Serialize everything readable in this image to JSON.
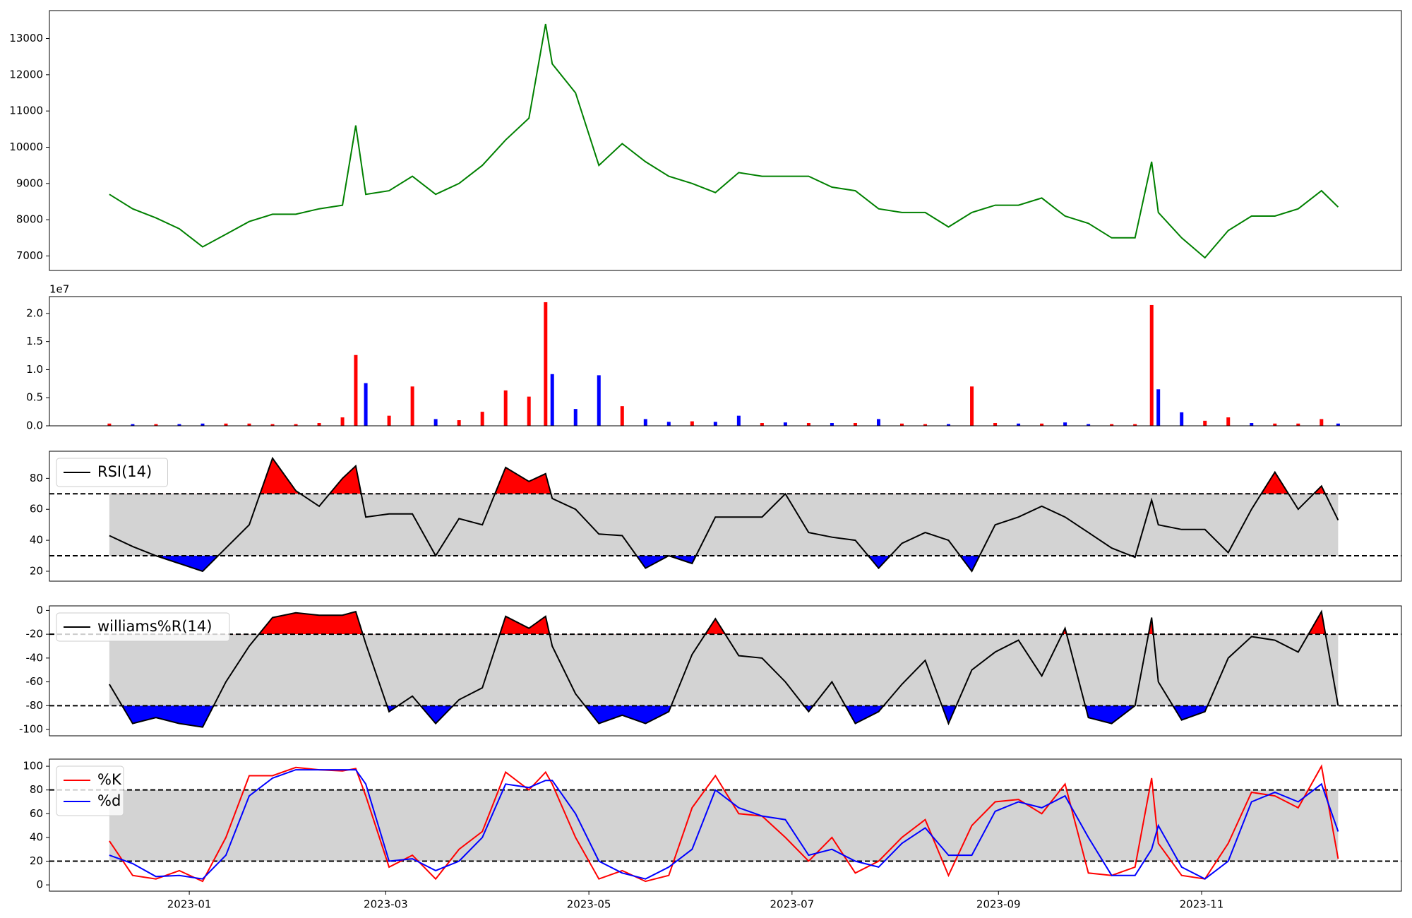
{
  "chart_data": [
    {
      "type": "line",
      "x": [
        "2022-12-08",
        "2022-12-15",
        "2022-12-22",
        "2022-12-29",
        "2023-01-05",
        "2023-01-12",
        "2023-01-19",
        "2023-01-26",
        "2023-02-02",
        "2023-02-09",
        "2023-02-16",
        "2023-02-20",
        "2023-02-23",
        "2023-03-02",
        "2023-03-09",
        "2023-03-16",
        "2023-03-23",
        "2023-03-30",
        "2023-04-06",
        "2023-04-13",
        "2023-04-18",
        "2023-04-20",
        "2023-04-27",
        "2023-05-04",
        "2023-05-11",
        "2023-05-18",
        "2023-05-25",
        "2023-06-01",
        "2023-06-08",
        "2023-06-15",
        "2023-06-22",
        "2023-06-29",
        "2023-07-06",
        "2023-07-13",
        "2023-07-20",
        "2023-07-27",
        "2023-08-03",
        "2023-08-10",
        "2023-08-17",
        "2023-08-24",
        "2023-08-31",
        "2023-09-07",
        "2023-09-14",
        "2023-09-21",
        "2023-09-28",
        "2023-10-05",
        "2023-10-12",
        "2023-10-17",
        "2023-10-19",
        "2023-10-26",
        "2023-11-02",
        "2023-11-09",
        "2023-11-16",
        "2023-11-23",
        "2023-11-30",
        "2023-12-07",
        "2023-12-12"
      ],
      "series": [
        {
          "color": "green",
          "values": [
            8700,
            8300,
            8050,
            7750,
            7250,
            7600,
            7950,
            8150,
            8150,
            8300,
            8400,
            10600,
            8700,
            8800,
            9200,
            8700,
            9000,
            9500,
            10200,
            10800,
            13400,
            12300,
            11500,
            9500,
            10100,
            9600,
            9200,
            9000,
            8750,
            9300,
            9200,
            9200,
            9200,
            8900,
            8800,
            8300,
            8200,
            8200,
            7800,
            8200,
            8400,
            8400,
            8600,
            8100,
            7900,
            7500,
            7500,
            9600,
            8200,
            7500,
            6950,
            7700,
            8100,
            8100,
            8300,
            8800,
            8350
          ]
        }
      ],
      "xlim": [
        "2022-11-20",
        "2023-12-31"
      ],
      "ylim": [
        6600,
        13770
      ],
      "yticks": [
        7000,
        8000,
        9000,
        10000,
        11000,
        12000,
        13000
      ]
    },
    {
      "type": "bar",
      "x": [
        "2022-12-08",
        "2022-12-15",
        "2022-12-22",
        "2022-12-29",
        "2023-01-05",
        "2023-01-12",
        "2023-01-19",
        "2023-01-26",
        "2023-02-02",
        "2023-02-09",
        "2023-02-16",
        "2023-02-20",
        "2023-02-23",
        "2023-03-02",
        "2023-03-09",
        "2023-03-16",
        "2023-03-23",
        "2023-03-30",
        "2023-04-06",
        "2023-04-13",
        "2023-04-18",
        "2023-04-20",
        "2023-04-27",
        "2023-05-04",
        "2023-05-11",
        "2023-05-18",
        "2023-05-25",
        "2023-06-01",
        "2023-06-08",
        "2023-06-15",
        "2023-06-22",
        "2023-06-29",
        "2023-07-06",
        "2023-07-13",
        "2023-07-20",
        "2023-07-27",
        "2023-08-03",
        "2023-08-10",
        "2023-08-17",
        "2023-08-24",
        "2023-08-31",
        "2023-09-07",
        "2023-09-14",
        "2023-09-21",
        "2023-09-28",
        "2023-10-05",
        "2023-10-12",
        "2023-10-17",
        "2023-10-19",
        "2023-10-26",
        "2023-11-02",
        "2023-11-09",
        "2023-11-16",
        "2023-11-23",
        "2023-11-30",
        "2023-12-07",
        "2023-12-12"
      ],
      "values": [
        400000,
        300000,
        300000,
        300000,
        400000,
        400000,
        400000,
        300000,
        300000,
        500000,
        1500000,
        12600000,
        7600000,
        1800000,
        7000000,
        1200000,
        1000000,
        2500000,
        6300000,
        5200000,
        22000000,
        9200000,
        3000000,
        9000000,
        3500000,
        1200000,
        700000,
        800000,
        700000,
        1800000,
        500000,
        600000,
        500000,
        500000,
        500000,
        1200000,
        400000,
        300000,
        300000,
        7000000,
        500000,
        400000,
        400000,
        600000,
        300000,
        300000,
        300000,
        21500000,
        6500000,
        2400000,
        900000,
        1500000,
        500000,
        400000,
        400000,
        1200000,
        400000
      ],
      "colors": [
        "red",
        "blue",
        "red",
        "blue",
        "blue",
        "red",
        "red",
        "red",
        "red",
        "red",
        "red",
        "red",
        "blue",
        "red",
        "red",
        "blue",
        "red",
        "red",
        "red",
        "red",
        "red",
        "blue",
        "blue",
        "blue",
        "red",
        "blue",
        "blue",
        "red",
        "blue",
        "blue",
        "red",
        "blue",
        "red",
        "blue",
        "red",
        "blue",
        "red",
        "red",
        "blue",
        "red",
        "red",
        "blue",
        "red",
        "blue",
        "blue",
        "red",
        "red",
        "red",
        "blue",
        "blue",
        "red",
        "red",
        "blue",
        "red",
        "red",
        "red",
        "blue"
      ],
      "offset_label": "1e7",
      "xlim": [
        "2022-11-20",
        "2023-12-31"
      ],
      "ylim": [
        0,
        23000000
      ],
      "yticks": [
        {
          "value": 0,
          "label": "0.0"
        },
        {
          "value": 5000000,
          "label": "0.5"
        },
        {
          "value": 10000000,
          "label": "1.0"
        },
        {
          "value": 15000000,
          "label": "1.5"
        },
        {
          "value": 20000000,
          "label": "2.0"
        }
      ]
    },
    {
      "type": "line",
      "x": [
        "2022-12-08",
        "2022-12-15",
        "2022-12-22",
        "2022-12-29",
        "2023-01-05",
        "2023-01-12",
        "2023-01-19",
        "2023-01-26",
        "2023-02-02",
        "2023-02-09",
        "2023-02-16",
        "2023-02-20",
        "2023-02-23",
        "2023-03-02",
        "2023-03-09",
        "2023-03-16",
        "2023-03-23",
        "2023-03-30",
        "2023-04-06",
        "2023-04-13",
        "2023-04-18",
        "2023-04-20",
        "2023-04-27",
        "2023-05-04",
        "2023-05-11",
        "2023-05-18",
        "2023-05-25",
        "2023-06-01",
        "2023-06-08",
        "2023-06-15",
        "2023-06-22",
        "2023-06-29",
        "2023-07-06",
        "2023-07-13",
        "2023-07-20",
        "2023-07-27",
        "2023-08-03",
        "2023-08-10",
        "2023-08-17",
        "2023-08-24",
        "2023-08-31",
        "2023-09-07",
        "2023-09-14",
        "2023-09-21",
        "2023-09-28",
        "2023-10-05",
        "2023-10-12",
        "2023-10-17",
        "2023-10-19",
        "2023-10-26",
        "2023-11-02",
        "2023-11-09",
        "2023-11-16",
        "2023-11-23",
        "2023-11-30",
        "2023-12-07",
        "2023-12-12"
      ],
      "series": [
        {
          "name": "RSI(14)",
          "color": "black",
          "values": [
            43,
            36,
            30,
            25,
            20,
            35,
            50,
            93,
            72,
            62,
            80,
            88,
            55,
            57,
            57,
            30,
            54,
            50,
            87,
            78,
            83,
            67,
            60,
            44,
            43,
            22,
            30,
            25,
            55,
            55,
            55,
            70,
            45,
            42,
            40,
            22,
            38,
            45,
            40,
            20,
            50,
            55,
            62,
            55,
            45,
            35,
            29,
            66,
            50,
            47,
            47,
            32,
            60,
            84,
            60,
            75,
            53
          ]
        }
      ],
      "upper": 70,
      "lower": 30,
      "above_color": "red",
      "below_color": "blue",
      "band_color": "lightgray",
      "legend": "upper left",
      "xlim": [
        "2022-11-20",
        "2023-12-31"
      ],
      "ylim": [
        13.6,
        97.5
      ],
      "yticks": [
        20,
        40,
        60,
        80
      ]
    },
    {
      "type": "line",
      "x": [
        "2022-12-08",
        "2022-12-15",
        "2022-12-22",
        "2022-12-29",
        "2023-01-05",
        "2023-01-12",
        "2023-01-19",
        "2023-01-26",
        "2023-02-02",
        "2023-02-09",
        "2023-02-16",
        "2023-02-20",
        "2023-02-23",
        "2023-03-02",
        "2023-03-09",
        "2023-03-16",
        "2023-03-23",
        "2023-03-30",
        "2023-04-06",
        "2023-04-13",
        "2023-04-18",
        "2023-04-20",
        "2023-04-27",
        "2023-05-04",
        "2023-05-11",
        "2023-05-18",
        "2023-05-25",
        "2023-06-01",
        "2023-06-08",
        "2023-06-15",
        "2023-06-22",
        "2023-06-29",
        "2023-07-06",
        "2023-07-13",
        "2023-07-20",
        "2023-07-27",
        "2023-08-03",
        "2023-08-10",
        "2023-08-17",
        "2023-08-24",
        "2023-08-31",
        "2023-09-07",
        "2023-09-14",
        "2023-09-21",
        "2023-09-28",
        "2023-10-05",
        "2023-10-12",
        "2023-10-17",
        "2023-10-19",
        "2023-10-26",
        "2023-11-02",
        "2023-11-09",
        "2023-11-16",
        "2023-11-23",
        "2023-11-30",
        "2023-12-07",
        "2023-12-12"
      ],
      "series": [
        {
          "name": "williams%R(14)",
          "color": "black",
          "values": [
            -62,
            -95,
            -90,
            -95,
            -98,
            -60,
            -30,
            -6,
            -2,
            -4,
            -4,
            -1,
            -28,
            -85,
            -72,
            -95,
            -75,
            -65,
            -5,
            -15,
            -5,
            -30,
            -70,
            -95,
            -88,
            -95,
            -85,
            -37,
            -7,
            -38,
            -40,
            -60,
            -85,
            -60,
            -95,
            -85,
            -62,
            -42,
            -95,
            -50,
            -35,
            -25,
            -55,
            -15,
            -90,
            -95,
            -80,
            -6,
            -60,
            -92,
            -85,
            -40,
            -22,
            -25,
            -35,
            -1,
            -80
          ]
        }
      ],
      "upper": -20,
      "lower": -80,
      "above_color": "red",
      "below_color": "blue",
      "band_color": "lightgray",
      "legend": "upper left",
      "xlim": [
        "2022-11-20",
        "2023-12-31"
      ],
      "ylim": [
        -105.3,
        3.8
      ],
      "yticks": [
        -100,
        -80,
        -60,
        -40,
        -20,
        0
      ]
    },
    {
      "type": "line",
      "x": [
        "2022-12-08",
        "2022-12-15",
        "2022-12-22",
        "2022-12-29",
        "2023-01-05",
        "2023-01-12",
        "2023-01-19",
        "2023-01-26",
        "2023-02-02",
        "2023-02-09",
        "2023-02-16",
        "2023-02-20",
        "2023-02-23",
        "2023-03-02",
        "2023-03-09",
        "2023-03-16",
        "2023-03-23",
        "2023-03-30",
        "2023-04-06",
        "2023-04-13",
        "2023-04-18",
        "2023-04-20",
        "2023-04-27",
        "2023-05-04",
        "2023-05-11",
        "2023-05-18",
        "2023-05-25",
        "2023-06-01",
        "2023-06-08",
        "2023-06-15",
        "2023-06-22",
        "2023-06-29",
        "2023-07-06",
        "2023-07-13",
        "2023-07-20",
        "2023-07-27",
        "2023-08-03",
        "2023-08-10",
        "2023-08-17",
        "2023-08-24",
        "2023-08-31",
        "2023-09-07",
        "2023-09-14",
        "2023-09-21",
        "2023-09-28",
        "2023-10-05",
        "2023-10-12",
        "2023-10-17",
        "2023-10-19",
        "2023-10-26",
        "2023-11-02",
        "2023-11-09",
        "2023-11-16",
        "2023-11-23",
        "2023-11-30",
        "2023-12-07",
        "2023-12-12"
      ],
      "series": [
        {
          "name": "%K",
          "color": "red",
          "values": [
            37,
            8,
            5,
            12,
            3,
            40,
            92,
            92,
            99,
            97,
            96,
            98,
            75,
            15,
            25,
            5,
            30,
            45,
            95,
            80,
            95,
            85,
            40,
            5,
            12,
            3,
            8,
            65,
            92,
            60,
            58,
            40,
            20,
            40,
            10,
            20,
            40,
            55,
            8,
            50,
            70,
            72,
            60,
            85,
            10,
            8,
            15,
            90,
            35,
            8,
            5,
            35,
            78,
            75,
            65,
            100,
            22
          ]
        },
        {
          "name": "%d",
          "color": "blue",
          "values": [
            25,
            18,
            7,
            8,
            5,
            25,
            75,
            90,
            97,
            97,
            97,
            97,
            85,
            20,
            22,
            12,
            20,
            40,
            85,
            82,
            88,
            88,
            60,
            20,
            10,
            5,
            15,
            30,
            80,
            65,
            58,
            55,
            25,
            30,
            20,
            15,
            35,
            48,
            25,
            25,
            62,
            70,
            65,
            75,
            40,
            8,
            8,
            30,
            50,
            15,
            5,
            20,
            70,
            78,
            70,
            85,
            45
          ]
        }
      ],
      "upper": 80,
      "lower": 20,
      "band_color": "lightgray",
      "legend": "upper left",
      "xlim": [
        "2022-11-20",
        "2023-12-31"
      ],
      "ylim": [
        -5.3,
        106
      ],
      "yticks": [
        0,
        20,
        40,
        60,
        80,
        100
      ],
      "xticks": [
        {
          "value": "2023-01-01",
          "label": "2023-01"
        },
        {
          "value": "2023-03-01",
          "label": "2023-03"
        },
        {
          "value": "2023-05-01",
          "label": "2023-05"
        },
        {
          "value": "2023-07-01",
          "label": "2023-07"
        },
        {
          "value": "2023-09-01",
          "label": "2023-09"
        },
        {
          "value": "2023-11-01",
          "label": "2023-11"
        }
      ]
    }
  ]
}
